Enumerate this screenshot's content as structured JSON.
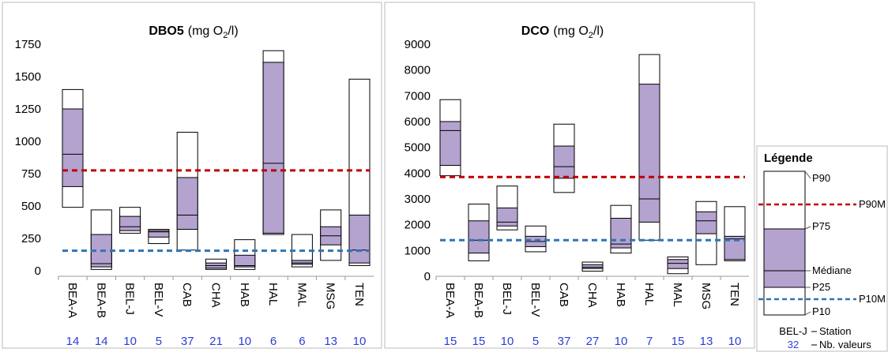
{
  "chart_data": [
    {
      "type": "box",
      "title": "DBO5",
      "unit_parts": [
        "(mg O",
        "2",
        "/l)"
      ],
      "categories": [
        "BEA-A",
        "BEA-B",
        "BEL-J",
        "BEL-V",
        "CAB",
        "CHA",
        "HAB",
        "HAL",
        "MAL",
        "MSG",
        "TEN"
      ],
      "counts": [
        14,
        14,
        10,
        5,
        37,
        21,
        10,
        6,
        6,
        13,
        10
      ],
      "p10": [
        490,
        10,
        290,
        210,
        160,
        10,
        10,
        280,
        30,
        80,
        40
      ],
      "p25": [
        650,
        30,
        310,
        260,
        320,
        20,
        30,
        290,
        50,
        200,
        60
      ],
      "median": [
        900,
        55,
        340,
        300,
        430,
        40,
        40,
        830,
        60,
        270,
        160
      ],
      "p75": [
        1250,
        280,
        420,
        310,
        720,
        60,
        120,
        1610,
        80,
        340,
        430
      ],
      "p90": [
        1400,
        470,
        490,
        320,
        1070,
        90,
        240,
        1700,
        280,
        470,
        1480
      ],
      "box_color": "#b4a2cf",
      "reference_lines": [
        {
          "value": 775,
          "color": "#c00000"
        },
        {
          "value": 155,
          "color": "#2e75b6"
        }
      ],
      "ylim": [
        0,
        1750
      ],
      "yticks": [
        0,
        250,
        500,
        750,
        1000,
        1250,
        1500,
        1750
      ]
    },
    {
      "type": "box",
      "title": "DCO",
      "unit_parts": [
        "(mg O",
        "2",
        "/l)"
      ],
      "categories": [
        "BEA-A",
        "BEA-B",
        "BEL-J",
        "BEL-V",
        "CAB",
        "CHA",
        "HAB",
        "HAL",
        "MAL",
        "MSG",
        "TEN"
      ],
      "counts": [
        15,
        15,
        10,
        5,
        37,
        27,
        10,
        7,
        15,
        13,
        10
      ],
      "p10": [
        3900,
        600,
        1800,
        950,
        3250,
        200,
        900,
        1400,
        100,
        450,
        600
      ],
      "p25": [
        4300,
        900,
        1950,
        1150,
        3800,
        300,
        1100,
        2100,
        300,
        1650,
        650
      ],
      "median": [
        5650,
        1400,
        2100,
        1350,
        4250,
        350,
        1250,
        3000,
        500,
        2150,
        1450
      ],
      "p75": [
        6000,
        2150,
        2650,
        1550,
        5050,
        450,
        2250,
        7450,
        650,
        2500,
        1550
      ],
      "p90": [
        6850,
        2800,
        3500,
        1950,
        5900,
        550,
        2750,
        8600,
        750,
        2900,
        2700
      ],
      "box_color": "#b4a2cf",
      "reference_lines": [
        {
          "value": 3850,
          "color": "#c00000"
        },
        {
          "value": 1400,
          "color": "#2e75b6"
        }
      ],
      "ylim": [
        0,
        9000
      ],
      "yticks": [
        0,
        1000,
        2000,
        3000,
        4000,
        5000,
        6000,
        7000,
        8000,
        9000
      ]
    }
  ],
  "legend": {
    "title": "Légende",
    "p90": "P90",
    "p90m": "P90M",
    "p75": "P75",
    "median": "Médiane",
    "p25": "P25",
    "p10m": "P10M",
    "p10": "P10",
    "example_station": "BEL-J",
    "station_label": "Station",
    "example_count": 32,
    "count_label": "Nb. valeurs"
  }
}
